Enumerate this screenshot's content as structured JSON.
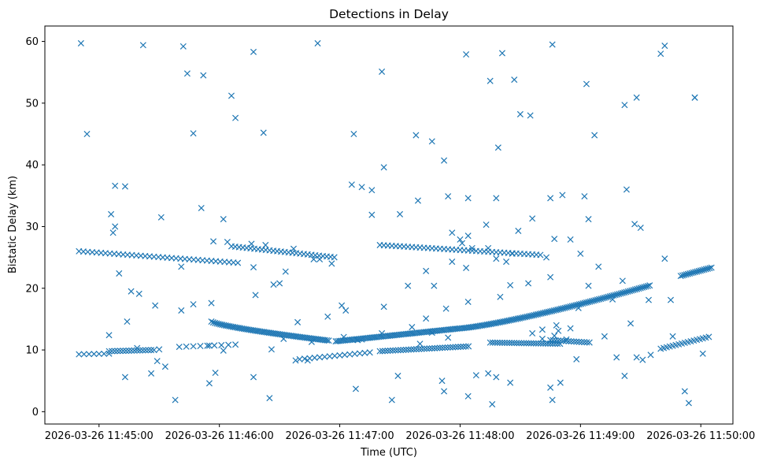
{
  "chart_data": {
    "type": "scatter",
    "title": "Detections in Delay",
    "xlabel": "Time (UTC)",
    "ylabel": "Bistatic Delay (km)",
    "marker": "x",
    "color": "#1f77b4",
    "x_unit": "seconds after 2026-03-26 11:45:00",
    "xlim": [
      -27,
      316
    ],
    "ylim": [
      -2.0,
      62.5
    ],
    "x_ticks": [
      {
        "value": 0,
        "label": "2026-03-26 11:45:00"
      },
      {
        "value": 60,
        "label": "2026-03-26 11:46:00"
      },
      {
        "value": 120,
        "label": "2026-03-26 11:47:00"
      },
      {
        "value": 180,
        "label": "2026-03-26 11:48:00"
      },
      {
        "value": 240,
        "label": "2026-03-26 11:49:00"
      },
      {
        "value": 300,
        "label": "2026-03-26 11:50:00"
      }
    ],
    "y_ticks": [
      {
        "value": 0,
        "label": "0"
      },
      {
        "value": 10,
        "label": "10"
      },
      {
        "value": 20,
        "label": "20"
      },
      {
        "value": 30,
        "label": "30"
      },
      {
        "value": 40,
        "label": "40"
      },
      {
        "value": 50,
        "label": "50"
      },
      {
        "value": 60,
        "label": "60"
      }
    ],
    "tracks": [
      {
        "name": "track-a",
        "x_start": -10,
        "x_end": 70,
        "x_step": 2.2,
        "y_start": 26.0,
        "y_end": 24.1
      },
      {
        "name": "track-b",
        "x_start": 66,
        "x_end": 118,
        "x_step": 1.9,
        "y_start": 26.8,
        "y_end": 25.0
      },
      {
        "name": "track-c",
        "x_start": 140,
        "x_end": 220,
        "x_step": 2.0,
        "y_start": 27.0,
        "y_end": 25.4
      },
      {
        "name": "track-d",
        "x_start": 56,
        "x_end": 115,
        "x_step": 0.9,
        "y_start": 14.6,
        "y_end": 11.5
      },
      {
        "name": "track-e",
        "x_start": 118,
        "x_end": 180,
        "x_step": 0.9,
        "y_start": 11.4,
        "y_end": 13.5
      },
      {
        "name": "track-f",
        "x_start": 180,
        "x_end": 275,
        "x_step": 0.9,
        "y_start": 13.5,
        "y_end": 20.5
      },
      {
        "name": "track-g",
        "x_start": 290,
        "x_end": 306,
        "x_step": 0.9,
        "y_start": 22.0,
        "y_end": 23.4
      },
      {
        "name": "track-h",
        "x_start": -10,
        "x_end": 5,
        "x_step": 2.5,
        "y_start": 9.3,
        "y_end": 9.4
      },
      {
        "name": "track-i",
        "x_start": 5,
        "x_end": 28,
        "x_step": 1.4,
        "y_start": 9.8,
        "y_end": 10.0
      },
      {
        "name": "track-j",
        "x_start": 40,
        "x_end": 70,
        "x_step": 3.5,
        "y_start": 10.5,
        "y_end": 10.9
      },
      {
        "name": "track-k",
        "x_start": 100,
        "x_end": 135,
        "x_step": 2.5,
        "y_start": 8.5,
        "y_end": 9.6
      },
      {
        "name": "track-l",
        "x_start": 140,
        "x_end": 185,
        "x_step": 1.3,
        "y_start": 9.8,
        "y_end": 10.6
      },
      {
        "name": "track-m",
        "x_start": 195,
        "x_end": 230,
        "x_step": 1.2,
        "y_start": 11.2,
        "y_end": 11.0
      },
      {
        "name": "track-n",
        "x_start": 225,
        "x_end": 245,
        "x_step": 1.3,
        "y_start": 11.6,
        "y_end": 11.2
      },
      {
        "name": "track-o",
        "x_start": 280,
        "x_end": 305,
        "x_step": 1.5,
        "y_start": 10.2,
        "y_end": 12.2
      }
    ],
    "points": [
      [
        -9,
        59.7
      ],
      [
        22,
        59.4
      ],
      [
        42,
        59.2
      ],
      [
        77,
        58.3
      ],
      [
        109,
        59.7
      ],
      [
        183,
        57.9
      ],
      [
        201,
        58.1
      ],
      [
        226,
        59.5
      ],
      [
        282,
        59.3
      ],
      [
        280,
        58.0
      ],
      [
        44,
        54.8
      ],
      [
        52,
        54.5
      ],
      [
        141,
        55.1
      ],
      [
        195,
        53.6
      ],
      [
        207,
        53.8
      ],
      [
        243,
        53.1
      ],
      [
        297,
        50.9
      ],
      [
        297,
        50.9
      ],
      [
        262,
        49.7
      ],
      [
        268,
        50.9
      ],
      [
        66,
        51.2
      ],
      [
        68,
        47.6
      ],
      [
        210,
        48.2
      ],
      [
        215,
        48.0
      ],
      [
        -6,
        45.0
      ],
      [
        47,
        45.1
      ],
      [
        82,
        45.2
      ],
      [
        127,
        45.0
      ],
      [
        158,
        44.8
      ],
      [
        166,
        43.8
      ],
      [
        199,
        42.8
      ],
      [
        247,
        44.8
      ],
      [
        263,
        36.0
      ],
      [
        142,
        39.6
      ],
      [
        126,
        36.8
      ],
      [
        136,
        35.9
      ],
      [
        174,
        34.9
      ],
      [
        184,
        34.6
      ],
      [
        198,
        34.6
      ],
      [
        225,
        34.6
      ],
      [
        231,
        35.1
      ],
      [
        242,
        34.9
      ],
      [
        8,
        36.6
      ],
      [
        13,
        36.5
      ],
      [
        6,
        32.0
      ],
      [
        8,
        30.0
      ],
      [
        7,
        29.0
      ],
      [
        16,
        19.5
      ],
      [
        10,
        22.4
      ],
      [
        14,
        14.6
      ],
      [
        20,
        19.1
      ],
      [
        31,
        31.5
      ],
      [
        41,
        23.5
      ],
      [
        41,
        16.4
      ],
      [
        51,
        33.0
      ],
      [
        57,
        27.6
      ],
      [
        62,
        31.2
      ],
      [
        64,
        27.5
      ],
      [
        77,
        23.4
      ],
      [
        78,
        18.9
      ],
      [
        76,
        27.2
      ],
      [
        83,
        27.0
      ],
      [
        90,
        20.8
      ],
      [
        99,
        14.5
      ],
      [
        107,
        24.7
      ],
      [
        116,
        24.0
      ],
      [
        121,
        17.2
      ],
      [
        131,
        36.4
      ],
      [
        136,
        31.9
      ],
      [
        150,
        32.0
      ],
      [
        159,
        34.2
      ],
      [
        172,
        40.7
      ],
      [
        176,
        29.0
      ],
      [
        180,
        27.9
      ],
      [
        181,
        27.3
      ],
      [
        184,
        28.5
      ],
      [
        183,
        23.3
      ],
      [
        193,
        30.3
      ],
      [
        194,
        26.5
      ],
      [
        198,
        24.8
      ],
      [
        203,
        24.3
      ],
      [
        209,
        29.3
      ],
      [
        216,
        31.3
      ],
      [
        223,
        25.0
      ],
      [
        227,
        28.0
      ],
      [
        235,
        27.9
      ],
      [
        240,
        25.6
      ],
      [
        244,
        31.2
      ],
      [
        249,
        23.5
      ],
      [
        256,
        18.2
      ],
      [
        261,
        21.2
      ],
      [
        265,
        14.3
      ],
      [
        267,
        30.4
      ],
      [
        270,
        29.8
      ],
      [
        274,
        18.1
      ],
      [
        282,
        24.8
      ],
      [
        285,
        18.1
      ],
      [
        28,
        17.2
      ],
      [
        47,
        17.4
      ],
      [
        56,
        17.6
      ],
      [
        114,
        15.4
      ],
      [
        123,
        16.4
      ],
      [
        142,
        17.0
      ],
      [
        163,
        15.1
      ],
      [
        173,
        16.7
      ],
      [
        184,
        17.8
      ],
      [
        200,
        18.6
      ],
      [
        205,
        20.5
      ],
      [
        214,
        20.8
      ],
      [
        225,
        21.8
      ],
      [
        228,
        14.0
      ],
      [
        229,
        13.1
      ],
      [
        239,
        16.8
      ],
      [
        244,
        20.4
      ],
      [
        93,
        22.7
      ],
      [
        97,
        26.4
      ],
      [
        87,
        20.6
      ],
      [
        110,
        24.7
      ],
      [
        154,
        20.4
      ],
      [
        163,
        22.8
      ],
      [
        176,
        24.3
      ],
      [
        186,
        26.5
      ],
      [
        206,
        25.6
      ],
      [
        13,
        5.6
      ],
      [
        26,
        6.2
      ],
      [
        29,
        8.2
      ],
      [
        33,
        7.3
      ],
      [
        38,
        1.9
      ],
      [
        55,
        4.6
      ],
      [
        58,
        6.3
      ],
      [
        62,
        9.9
      ],
      [
        77,
        5.6
      ],
      [
        85,
        2.2
      ],
      [
        98,
        8.3
      ],
      [
        104,
        8.3
      ],
      [
        128,
        3.7
      ],
      [
        131,
        11.7
      ],
      [
        146,
        1.9
      ],
      [
        149,
        5.8
      ],
      [
        156,
        13.7
      ],
      [
        167,
        20.4
      ],
      [
        171,
        5.0
      ],
      [
        172,
        3.3
      ],
      [
        184,
        2.5
      ],
      [
        188,
        5.9
      ],
      [
        194,
        6.2
      ],
      [
        196,
        1.2
      ],
      [
        198,
        5.6
      ],
      [
        205,
        4.7
      ],
      [
        216,
        12.7
      ],
      [
        221,
        13.3
      ],
      [
        225,
        3.9
      ],
      [
        226,
        1.9
      ],
      [
        230,
        4.7
      ],
      [
        238,
        8.5
      ],
      [
        262,
        5.8
      ],
      [
        268,
        8.8
      ],
      [
        292,
        3.3
      ],
      [
        294,
        1.4
      ],
      [
        301,
        9.4
      ],
      [
        5,
        12.4
      ],
      [
        19,
        10.3
      ],
      [
        30,
        10.1
      ],
      [
        55,
        10.7
      ],
      [
        86,
        10.1
      ],
      [
        92,
        11.8
      ],
      [
        106,
        11.3
      ],
      [
        122,
        12.1
      ],
      [
        129,
        11.6
      ],
      [
        141,
        12.7
      ],
      [
        160,
        11.0
      ],
      [
        166,
        12.8
      ],
      [
        174,
        12.0
      ],
      [
        221,
        11.8
      ],
      [
        227,
        12.3
      ],
      [
        233,
        11.7
      ],
      [
        235,
        13.5
      ],
      [
        252,
        12.2
      ],
      [
        258,
        8.8
      ],
      [
        271,
        8.4
      ],
      [
        275,
        9.2
      ],
      [
        286,
        12.2
      ]
    ]
  }
}
